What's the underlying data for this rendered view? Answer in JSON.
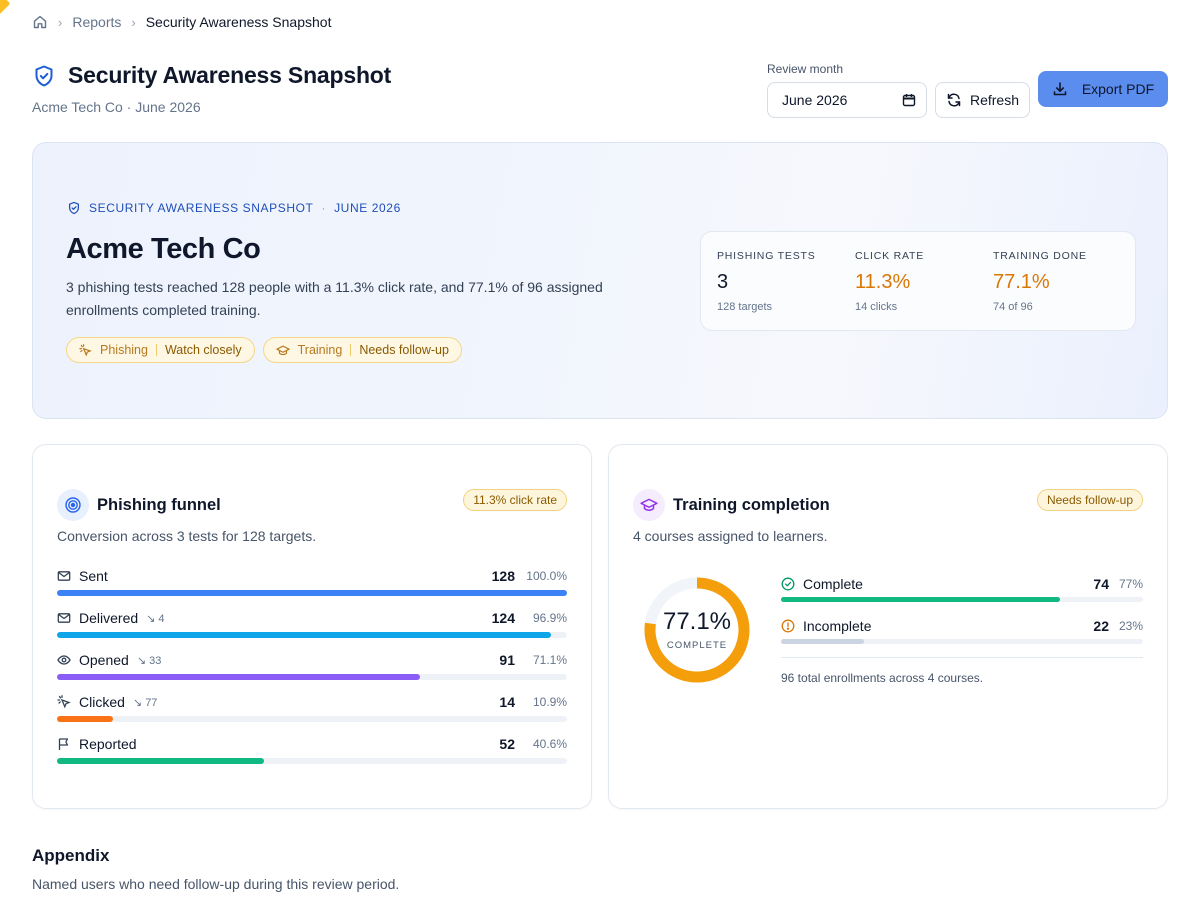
{
  "breadcrumb": {
    "home_icon": "home-icon",
    "items": [
      "Reports",
      "Security Awareness Snapshot"
    ]
  },
  "header": {
    "title": "Security Awareness Snapshot",
    "subtitle": "Acme Tech Co · June 2026",
    "review_month_label": "Review month",
    "review_month_value": "June 2026",
    "refresh_label": "Refresh",
    "export_label": "Export PDF"
  },
  "hero": {
    "kicker": "SECURITY AWARENESS SNAPSHOT",
    "kicker_period": "JUNE 2026",
    "company": "Acme Tech Co",
    "summary": "3 phishing tests reached 128 people with a 11.3% click rate, and 77.1% of 96 assigned enrollments completed training.",
    "pills": [
      {
        "category": "Phishing",
        "status": "Watch closely",
        "icon": "cursor-click-icon"
      },
      {
        "category": "Training",
        "status": "Needs follow-up",
        "icon": "graduation-cap-icon"
      }
    ],
    "stats": [
      {
        "label": "PHISHING TESTS",
        "value": "3",
        "sub": "128 targets"
      },
      {
        "label": "CLICK RATE",
        "value": "11.3%",
        "sub": "14 clicks"
      },
      {
        "label": "TRAINING DONE",
        "value": "77.1%",
        "sub": "74 of 96"
      }
    ]
  },
  "phishing": {
    "title": "Phishing funnel",
    "description": "Conversion across 3 tests for 128 targets.",
    "badge": "11.3% click rate",
    "rows": [
      {
        "label": "Sent",
        "icon": "mail-icon",
        "drop": "",
        "count": "128",
        "pct": "100.0%",
        "fraction": 1.0,
        "color": "#3b82f6"
      },
      {
        "label": "Delivered",
        "icon": "mail-check-icon",
        "drop": "4",
        "count": "124",
        "pct": "96.9%",
        "fraction": 0.969,
        "color": "#0ea5e9"
      },
      {
        "label": "Opened",
        "icon": "eye-icon",
        "drop": "33",
        "count": "91",
        "pct": "71.1%",
        "fraction": 0.711,
        "color": "#8b5cf6"
      },
      {
        "label": "Clicked",
        "icon": "cursor-click-icon",
        "drop": "77",
        "count": "14",
        "pct": "10.9%",
        "fraction": 0.109,
        "color": "#f97316"
      },
      {
        "label": "Reported",
        "icon": "flag-icon",
        "drop": "",
        "count": "52",
        "pct": "40.6%",
        "fraction": 0.406,
        "color": "#10b981"
      }
    ]
  },
  "training": {
    "title": "Training completion",
    "description": "4 courses assigned to learners.",
    "badge": "Needs follow-up",
    "donut_value": "77.1%",
    "donut_fraction": 0.771,
    "donut_caption": "COMPLETE",
    "rows": [
      {
        "label": "Complete",
        "icon": "check-circle-icon",
        "count": "74",
        "pct": "77%",
        "fraction": 0.77,
        "color": "#10b981"
      },
      {
        "label": "Incomplete",
        "icon": "alert-circle-icon",
        "count": "22",
        "pct": "23%",
        "fraction": 0.23,
        "color": "#cbd5e1"
      }
    ],
    "footer": "96 total enrollments across 4 courses."
  },
  "appendix": {
    "title": "Appendix",
    "description": "Named users who need follow-up during this review period."
  },
  "colors": {
    "accent": "#5b8def",
    "warning": "#d97706",
    "success": "#10b981"
  }
}
